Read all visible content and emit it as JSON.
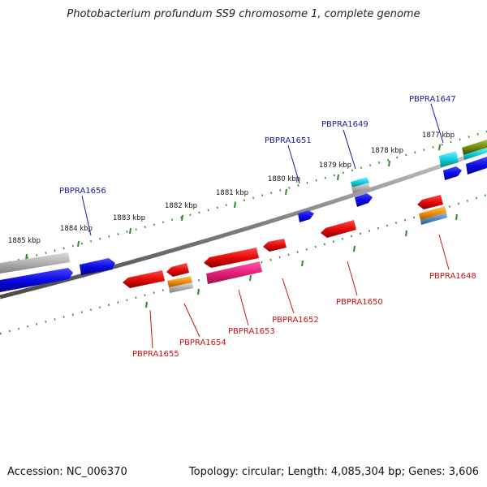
{
  "title": "Photobacterium profundum SS9 chromosome 1, complete genome",
  "footer": {
    "accession": "Accession: NC_006370",
    "stats": "Topology: circular; Length: 4,085,304 bp; Genes: 3,606"
  },
  "colors": {
    "backbone": "#7a7a7a",
    "tick": "#2d8a2d",
    "forward_label": "#1a1aa6",
    "reverse_label": "#cc1111",
    "gene_blue": "#1010e0",
    "gene_red": "#e01010",
    "gene_magenta": "#e0207a",
    "gene_cyan": "#10d0e0",
    "gene_gray": "#b0b0b0",
    "gene_orange": "#f09010",
    "gene_olive": "#708a10"
  },
  "scale_labels": [
    "1885 kbp",
    "1884 kbp",
    "1883 kbp",
    "1882 kbp",
    "1881 kbp",
    "1880 kbp",
    "1879 kbp",
    "1878 kbp",
    "1877 kbp"
  ],
  "forward_genes": [
    "PBPRA1656",
    "PBPRA1651",
    "PBPRA1649",
    "PBPRA1647"
  ],
  "reverse_genes": [
    "PBPRA1655",
    "PBPRA1654",
    "PBPRA1653",
    "PBPRA1652",
    "PBPRA1650",
    "PBPRA1648"
  ]
}
